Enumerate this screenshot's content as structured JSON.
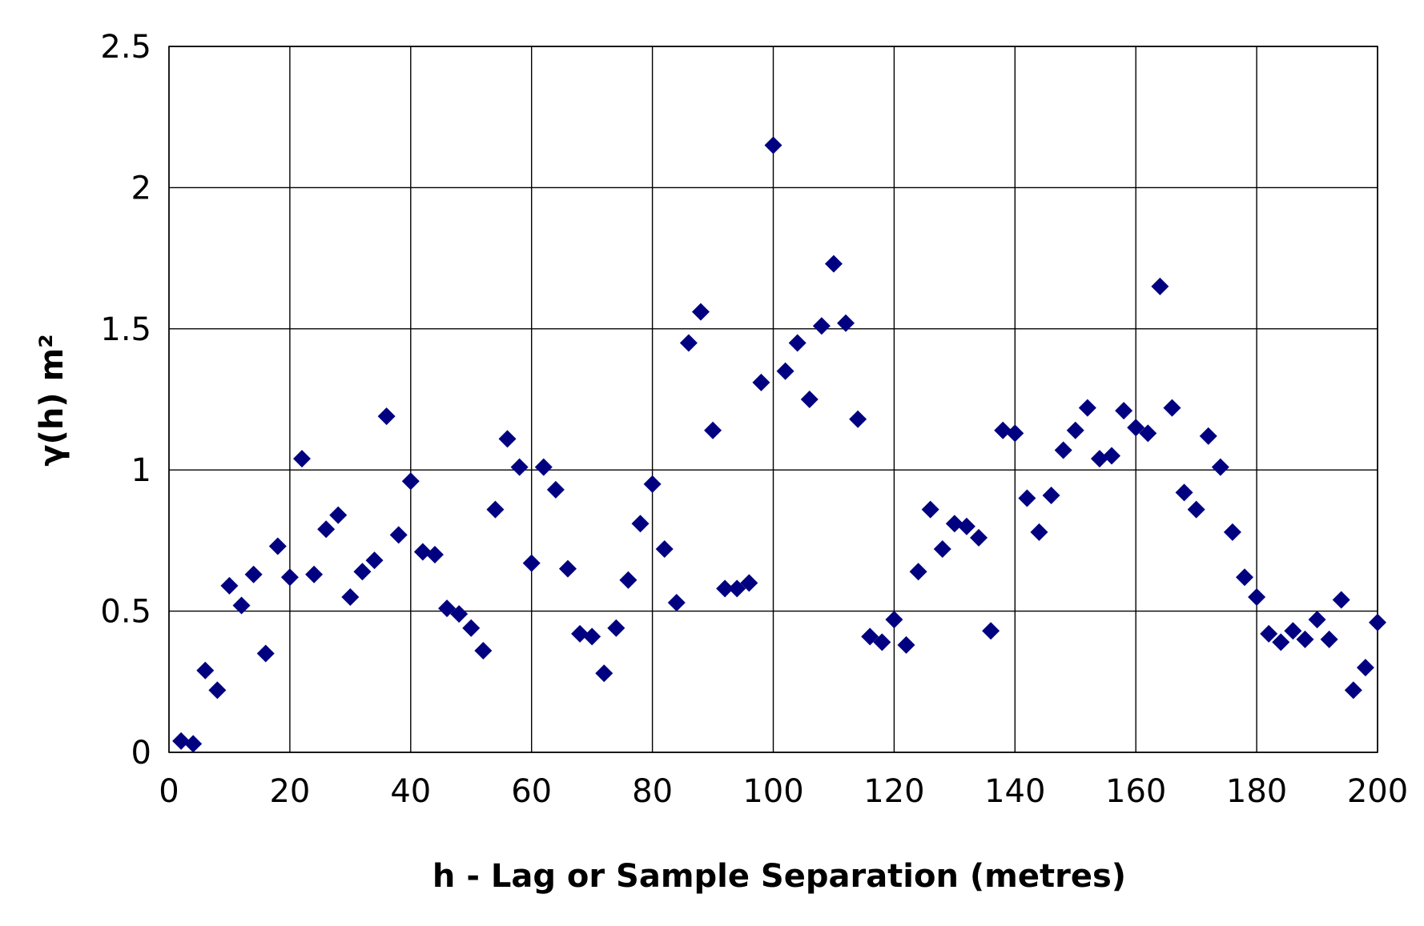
{
  "chart_data": {
    "type": "scatter",
    "xlabel": "h - Lag or Sample Separation (metres)",
    "ylabel": "γ(h) m²",
    "xlim": [
      0,
      200
    ],
    "ylim": [
      0,
      2.5
    ],
    "x_ticks": [
      0,
      20,
      40,
      60,
      80,
      100,
      120,
      140,
      160,
      180,
      200
    ],
    "y_ticks": [
      0,
      0.5,
      1,
      1.5,
      2,
      2.5
    ],
    "x_tick_labels": [
      "0",
      "20",
      "40",
      "60",
      "80",
      "100",
      "120",
      "140",
      "160",
      "180",
      "200"
    ],
    "y_tick_labels": [
      "0",
      "0.5",
      "1",
      "1.5",
      "2",
      "2.5"
    ],
    "grid": true,
    "legend": "none",
    "marker": "diamond",
    "marker_color": "#000080",
    "series": [
      {
        "x": [
          2,
          4,
          6,
          8,
          10,
          12,
          14,
          16,
          18,
          20,
          22,
          24,
          26,
          28,
          30,
          32,
          34,
          36,
          38,
          40,
          42,
          44,
          46,
          48,
          50,
          52,
          54,
          56,
          58,
          60,
          62,
          64,
          66,
          68,
          70,
          72,
          74,
          76,
          78,
          80,
          82,
          84,
          86,
          88,
          90,
          92,
          94,
          96,
          98,
          100,
          102,
          104,
          106,
          108,
          110,
          112,
          114,
          116,
          118,
          120,
          122,
          124,
          126,
          128,
          130,
          132,
          134,
          136,
          138,
          140,
          142,
          144,
          146,
          148,
          150,
          152,
          154,
          156,
          158,
          160,
          162,
          164,
          166,
          168,
          170,
          172,
          174,
          176,
          178,
          180,
          182,
          184,
          186,
          188,
          190,
          192,
          194,
          196,
          198,
          200
        ],
        "y": [
          0.04,
          0.03,
          0.29,
          0.22,
          0.59,
          0.52,
          0.63,
          0.35,
          0.73,
          0.62,
          1.04,
          0.63,
          0.79,
          0.84,
          0.55,
          0.64,
          0.68,
          1.19,
          0.77,
          0.96,
          0.71,
          0.7,
          0.51,
          0.49,
          0.44,
          0.36,
          0.86,
          1.11,
          1.01,
          0.67,
          1.01,
          0.93,
          0.65,
          0.42,
          0.41,
          0.28,
          0.44,
          0.61,
          0.81,
          0.95,
          0.72,
          0.53,
          1.45,
          1.56,
          1.14,
          0.58,
          0.58,
          0.6,
          1.31,
          2.15,
          1.35,
          1.45,
          1.25,
          1.51,
          1.73,
          1.52,
          1.18,
          0.41,
          0.39,
          0.47,
          0.38,
          0.64,
          0.86,
          0.72,
          0.81,
          0.8,
          0.76,
          0.43,
          1.14,
          1.13,
          0.9,
          0.78,
          0.91,
          1.07,
          1.14,
          1.22,
          1.04,
          1.05,
          1.21,
          1.15,
          1.13,
          1.65,
          1.22,
          0.92,
          0.86,
          1.12,
          1.01,
          0.78,
          0.62,
          0.55,
          0.42,
          0.39,
          0.43,
          0.4,
          0.47,
          0.4,
          0.54,
          0.22,
          0.3,
          0.46
        ]
      }
    ]
  }
}
